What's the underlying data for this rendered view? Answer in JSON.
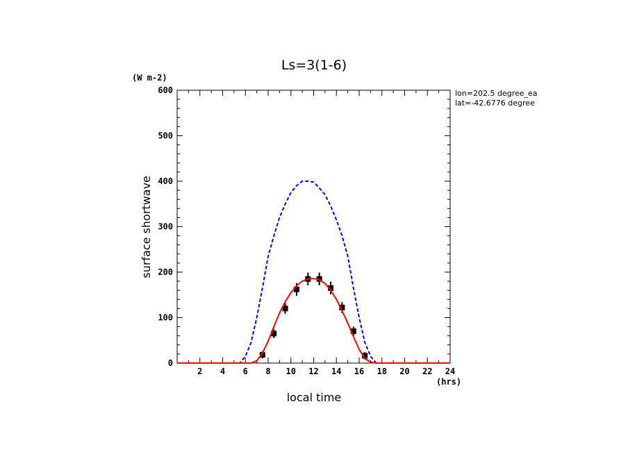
{
  "chart_data": {
    "type": "line",
    "title": "Ls=3(1-6)",
    "xlabel": "local time",
    "ylabel": "surface shortwave",
    "x_unit": "(hrs)",
    "y_unit": "(W m-2)",
    "xlim": [
      0,
      24
    ],
    "ylim": [
      0,
      600
    ],
    "x_ticks": [
      2,
      4,
      6,
      8,
      10,
      12,
      14,
      16,
      18,
      20,
      22,
      24
    ],
    "y_ticks": [
      0,
      100,
      200,
      300,
      400,
      500,
      600
    ],
    "annotations": [
      "lon=202.5 degree_ea",
      "lat=-42.6776 degree"
    ],
    "colors": {
      "model_line": "#ff0000",
      "toa_line": "#0000ff",
      "observations": "#000000"
    },
    "series": [
      {
        "style": "dashed",
        "color": "#0000ff",
        "x": [
          0,
          1,
          2,
          3,
          4,
          5,
          5.5,
          6,
          6.5,
          7,
          7.5,
          8,
          8.5,
          9,
          9.5,
          10,
          10.5,
          11,
          11.5,
          12,
          12.5,
          13,
          13.5,
          14,
          14.5,
          15,
          15.5,
          16,
          16.5,
          17,
          17.5,
          18,
          18.5,
          19,
          20,
          21,
          22,
          23,
          24
        ],
        "y": [
          0,
          0,
          0,
          0,
          0,
          0,
          0,
          15,
          45,
          100,
          165,
          235,
          280,
          320,
          350,
          375,
          390,
          400,
          400,
          398,
          385,
          370,
          345,
          315,
          280,
          235,
          165,
          100,
          45,
          15,
          0,
          0,
          0,
          0,
          0,
          0,
          0,
          0,
          0
        ]
      },
      {
        "style": "solid",
        "color": "#ff0000",
        "x": [
          0,
          1,
          2,
          3,
          4,
          5,
          6,
          6.5,
          7,
          7.5,
          8,
          8.5,
          9,
          9.5,
          10,
          10.5,
          11,
          11.5,
          12,
          12.5,
          13,
          13.5,
          14,
          14.5,
          15,
          15.5,
          16,
          16.5,
          17,
          17.5,
          18,
          19,
          20,
          21,
          22,
          23,
          24
        ],
        "y": [
          0,
          0,
          0,
          0,
          0,
          0,
          0,
          0,
          5,
          22,
          48,
          80,
          110,
          135,
          155,
          170,
          180,
          185,
          186,
          183,
          175,
          160,
          140,
          115,
          88,
          58,
          30,
          10,
          2,
          0,
          0,
          0,
          0,
          0,
          0,
          0,
          0
        ]
      },
      {
        "style": "markers",
        "color": "#000000",
        "x": [
          7.5,
          8.5,
          9.5,
          10.5,
          11.5,
          12.5,
          13.5,
          14.5,
          15.5,
          16.5
        ],
        "y": [
          18,
          65,
          120,
          162,
          185,
          185,
          165,
          122,
          70,
          16
        ],
        "err": [
          8,
          10,
          12,
          14,
          14,
          14,
          14,
          12,
          10,
          8
        ]
      }
    ]
  }
}
